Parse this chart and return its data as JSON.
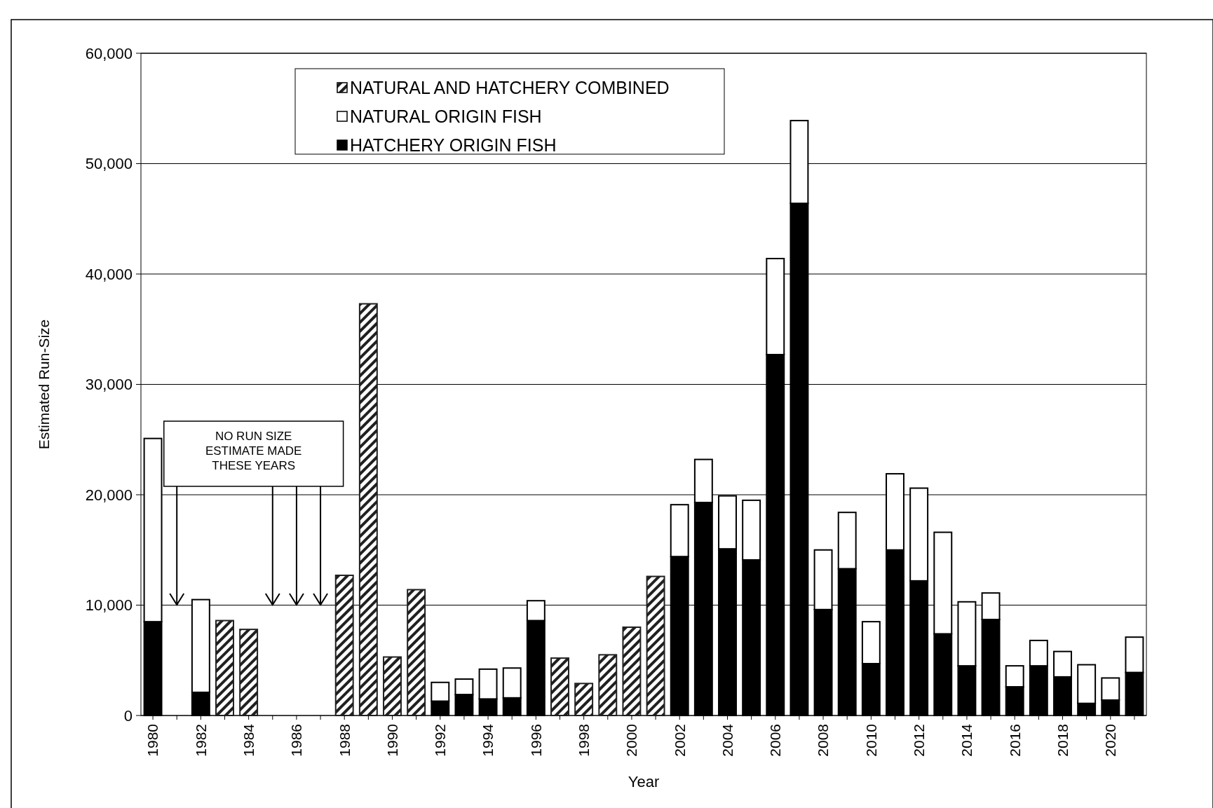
{
  "chart_data": {
    "type": "bar",
    "stacked": true,
    "xlabel": "Year",
    "ylabel": "Estimated Run-Size",
    "categories": [
      "1980",
      null,
      "1982",
      null,
      "1984",
      null,
      "1986",
      null,
      "1988",
      null,
      "1990",
      null,
      "1992",
      null,
      "1994",
      null,
      "1996",
      null,
      "1998",
      null,
      "2000",
      null,
      "2002",
      null,
      "2004",
      null,
      "2006",
      null,
      "2008",
      null,
      "2010",
      null,
      "2012",
      null,
      "2014",
      null,
      "2016",
      null,
      "2018",
      null,
      "2020",
      null
    ],
    "series": [
      {
        "name": "HATCHERY ORIGIN FISH",
        "color": "#000000",
        "values": [
          8500,
          null,
          2100,
          null,
          null,
          null,
          null,
          null,
          null,
          null,
          null,
          null,
          1300,
          1900,
          1500,
          1600,
          8600,
          null,
          null,
          null,
          null,
          null,
          14400,
          19300,
          15100,
          14100,
          32700,
          46400,
          9600,
          13300,
          4700,
          15000,
          12200,
          7400,
          4500,
          8700,
          2600,
          4500,
          3500,
          1100,
          1400,
          3900
        ]
      },
      {
        "name": "NATURAL ORIGIN FISH",
        "color": "#ffffff",
        "values": [
          16600,
          null,
          8400,
          null,
          null,
          null,
          null,
          null,
          null,
          null,
          null,
          null,
          1700,
          1400,
          2700,
          2700,
          1800,
          null,
          null,
          null,
          null,
          null,
          4700,
          3900,
          4800,
          5400,
          8700,
          7500,
          5400,
          5100,
          3800,
          6900,
          8400,
          9200,
          5800,
          2400,
          1900,
          2300,
          2300,
          3500,
          2000,
          3200
        ]
      },
      {
        "name": "NATURAL AND HATCHERY COMBINED",
        "color": "#202020",
        "values": [
          null,
          null,
          null,
          8600,
          7800,
          null,
          null,
          null,
          12700,
          37300,
          5300,
          11400,
          null,
          null,
          null,
          null,
          null,
          5200,
          2900,
          5500,
          8000,
          12600,
          null,
          null,
          null,
          null,
          null,
          null,
          null,
          null,
          null,
          null,
          null,
          null,
          null,
          null,
          null,
          null,
          null,
          null,
          null,
          null
        ]
      }
    ],
    "ylim": [
      0,
      60000
    ],
    "yticks": [
      {
        "value": 0,
        "label": "0"
      },
      {
        "value": 10000,
        "label": "10,000"
      },
      {
        "value": 20000,
        "label": "20,000"
      },
      {
        "value": 30000,
        "label": "30,000"
      },
      {
        "value": 40000,
        "label": "40,000"
      },
      {
        "value": 50000,
        "label": "50,000"
      },
      {
        "value": 60000,
        "label": "60,000"
      }
    ],
    "grid": "y",
    "legend": "top",
    "annotations": [
      "NO RUN SIZE ESTIMATE MADE THESE YEARS"
    ]
  }
}
